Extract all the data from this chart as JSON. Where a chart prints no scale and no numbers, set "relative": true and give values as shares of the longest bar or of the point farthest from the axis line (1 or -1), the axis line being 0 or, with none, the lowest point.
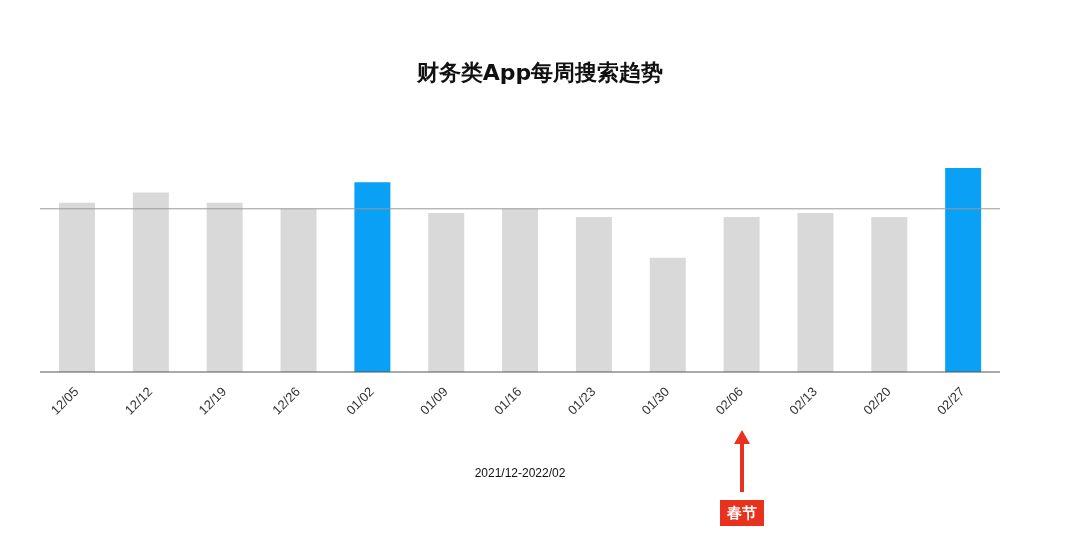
{
  "chart_data": {
    "type": "bar",
    "title": "财务类App每周搜索趋势",
    "xlabel": "2021/12-2022/02",
    "relative": true,
    "categories": [
      "12/05",
      "12/12",
      "12/19",
      "12/26",
      "01/02",
      "01/09",
      "01/16",
      "01/23",
      "01/30",
      "02/06",
      "02/13",
      "02/20",
      "02/27"
    ],
    "values": [
      0.83,
      0.88,
      0.83,
      0.8,
      0.93,
      0.78,
      0.8,
      0.76,
      0.56,
      0.76,
      0.78,
      0.76,
      1
    ],
    "colors": [
      "#d9d9d9",
      "#d9d9d9",
      "#d9d9d9",
      "#d9d9d9",
      "#0aa0f5",
      "#d9d9d9",
      "#d9d9d9",
      "#d9d9d9",
      "#d9d9d9",
      "#d9d9d9",
      "#d9d9d9",
      "#d9d9d9",
      "#0aa0f5"
    ],
    "ref_lines": [
      {
        "axis": "y",
        "value": 0.8,
        "color": "#999999"
      }
    ],
    "annotations": [
      "春节"
    ],
    "grid": false,
    "legend": false
  }
}
